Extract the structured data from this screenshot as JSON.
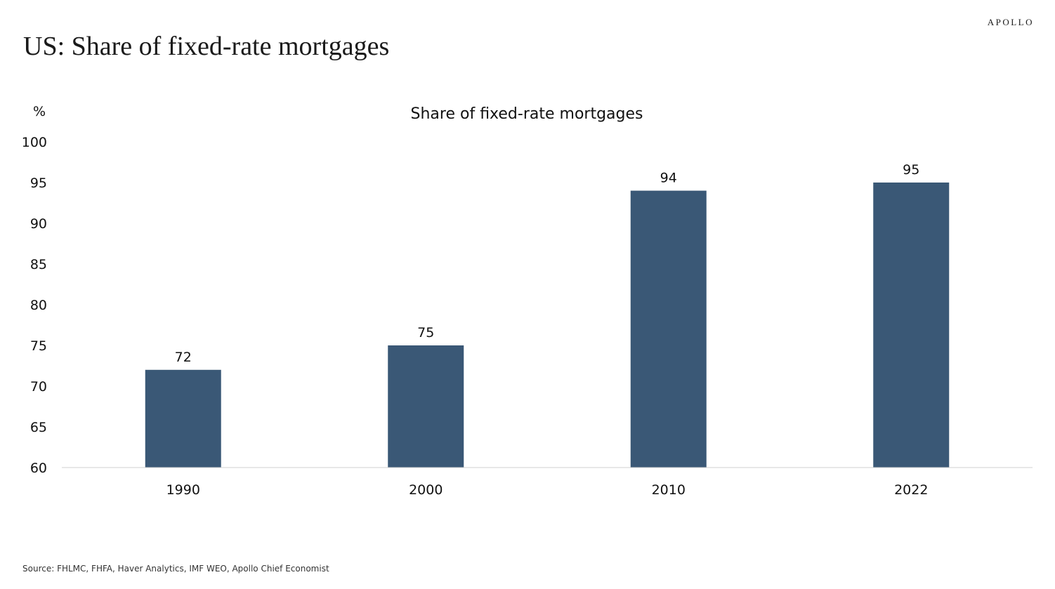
{
  "header": {
    "brand": "APOLLO",
    "title": "US: Share of fixed-rate mortgages"
  },
  "chart_data": {
    "type": "bar",
    "title": "Share of fixed-rate mortgages",
    "ylabel": "%",
    "xlabel": "",
    "categories": [
      "1990",
      "2000",
      "2010",
      "2022"
    ],
    "values": [
      72,
      75,
      94,
      95
    ],
    "data_labels": [
      "72",
      "75",
      "94",
      "95"
    ],
    "ylim": [
      60,
      100
    ],
    "yticks": [
      60,
      65,
      70,
      75,
      80,
      85,
      90,
      95,
      100
    ],
    "bar_color": "#3a5876",
    "axis_color": "#d0d0d0",
    "grid": false,
    "legend": "none"
  },
  "footer": {
    "source": "Source: FHLMC, FHFA, Haver Analytics, IMF WEO, Apollo Chief Economist"
  }
}
